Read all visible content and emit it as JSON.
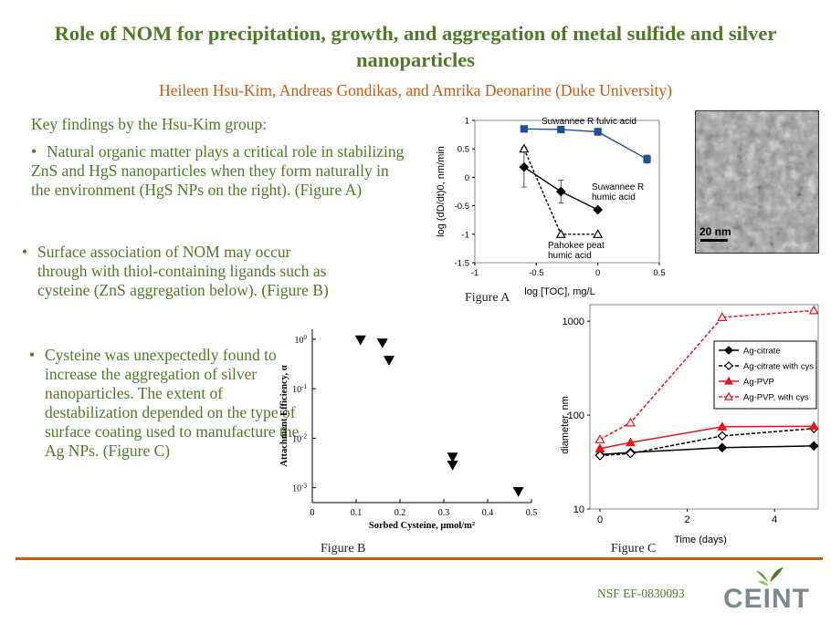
{
  "title": "Role of NOM for precipitation, growth, and aggregation of metal sulfide and silver nanoparticles",
  "authors": "Heileen Hsu-Kim, Andreas Gondikas, and Amrika Deonarine (Duke University)",
  "findings": {
    "heading": "Key findings by the Hsu-Kim group:",
    "items": [
      "Natural organic matter plays a critical role in stabilizing ZnS and HgS nanoparticles when they form naturally in the environment  (HgS NPs on the right). (Figure A)",
      "Surface association of NOM may occur through with thiol-containing ligands such as cysteine (ZnS aggregation below).  (Figure B)",
      "Cysteine was unexpectedly found to increase the aggregation of silver nanoparticles. The extent of destabilization depended on the type of surface coating used to manufacture the Ag NPs. (Figure C)"
    ],
    "bullet": "•"
  },
  "figures": {
    "a_caption": "Figure A",
    "b_caption": "Figure B",
    "c_caption": "Figure C",
    "tem_scale_label": "20 nm"
  },
  "footer": {
    "grant": "NSF EF-0830093",
    "logo_text": "CEINT"
  },
  "colors": {
    "title_green": "#4f7a28",
    "author_orange": "#c55a11",
    "rule_orange": "#c55a11",
    "series_blue": "#1f4e9a",
    "series_red": "#e8141b"
  },
  "chart_data": [
    {
      "id": "figure-a",
      "type": "line",
      "xlabel": "log [TOC], mg/L",
      "ylabel": "log (dD/dt)0, nm/min",
      "xlim": [
        -1,
        0.5
      ],
      "ylim": [
        -1.5,
        1
      ],
      "xticks": [
        "-1",
        "-0.5",
        "0",
        "0.5"
      ],
      "yticks": [
        "-1.5",
        "-1",
        "-0.5",
        "0",
        "0.5",
        "1"
      ],
      "series": [
        {
          "name": "Suwannee R fulvic acid",
          "label_lines": [
            "Suwannee R fulvic acid"
          ],
          "marker": "square",
          "color": "#1f4e9a",
          "dash": false,
          "x": [
            -0.6,
            -0.3,
            0,
            0.4
          ],
          "y": [
            0.85,
            0.84,
            0.8,
            0.32
          ],
          "err": [
            0,
            0,
            0.06,
            0.07
          ]
        },
        {
          "name": "Suwannee R humic acid",
          "label_lines": [
            "Suwannee R",
            "humic acid"
          ],
          "marker": "diamond",
          "color": "#000000",
          "dash": false,
          "x": [
            -0.6,
            -0.3,
            0
          ],
          "y": [
            0.18,
            -0.25,
            -0.57
          ],
          "err": [
            0.35,
            0.2,
            0
          ]
        },
        {
          "name": "Pahokee peat humic acid",
          "label_lines": [
            "Pahokee peat",
            "humic acid"
          ],
          "marker": "triangle-open",
          "color": "#000000",
          "dash": true,
          "x": [
            -0.6,
            -0.3,
            0
          ],
          "y": [
            0.5,
            -1.0,
            -1.0
          ],
          "err": [
            0,
            0,
            0
          ]
        }
      ]
    },
    {
      "id": "figure-b",
      "type": "scatter",
      "xlabel": "Sorbed Cysteine, μmol/m²",
      "ylabel": "Attachment Efficiency, α",
      "xlim": [
        0,
        0.5
      ],
      "ylim_log10": [
        -3.3,
        0.2
      ],
      "xticks": [
        "0",
        "0.1",
        "0.2",
        "0.3",
        "0.4",
        "0.5"
      ],
      "yticks": [
        "10^0",
        "10^-1",
        "10^-2",
        "10^-3"
      ],
      "marker": "triangle-down",
      "x": [
        0.11,
        0.16,
        0.175,
        0.32,
        0.32,
        0.47
      ],
      "y": [
        0.98,
        0.85,
        0.38,
        0.0042,
        0.0029,
        0.00085
      ]
    },
    {
      "id": "figure-c",
      "type": "line",
      "xlabel": "Time (days)",
      "ylabel": "diameter, nm",
      "xlim": [
        0,
        5
      ],
      "ylim_log": [
        10,
        1500
      ],
      "xticks": [
        "0",
        "2",
        "4"
      ],
      "yticks": [
        "10",
        "100",
        "1000"
      ],
      "legend": "top-right",
      "series": [
        {
          "name": "Ag-citrate",
          "marker": "diamond",
          "color": "#000000",
          "dash": false,
          "x": [
            0,
            0.7,
            2.8,
            4.9
          ],
          "y": [
            38,
            40,
            45,
            47
          ]
        },
        {
          "name": "Ag-citrate with cys",
          "marker": "diamond-open",
          "color": "#000000",
          "dash": true,
          "x": [
            0,
            0.7,
            2.8,
            4.9
          ],
          "y": [
            37,
            39,
            60,
            72
          ]
        },
        {
          "name": "Ag-PVP",
          "marker": "triangle",
          "color": "#e8141b",
          "dash": false,
          "x": [
            0,
            0.7,
            2.8,
            4.9
          ],
          "y": [
            44,
            51,
            75,
            76
          ]
        },
        {
          "name": "Ag-PVP, with cys",
          "marker": "triangle-open",
          "color": "#e8141b",
          "dash": true,
          "x": [
            0,
            0.7,
            2.8,
            4.9
          ],
          "y": [
            55,
            83,
            1100,
            1300
          ]
        }
      ]
    }
  ]
}
